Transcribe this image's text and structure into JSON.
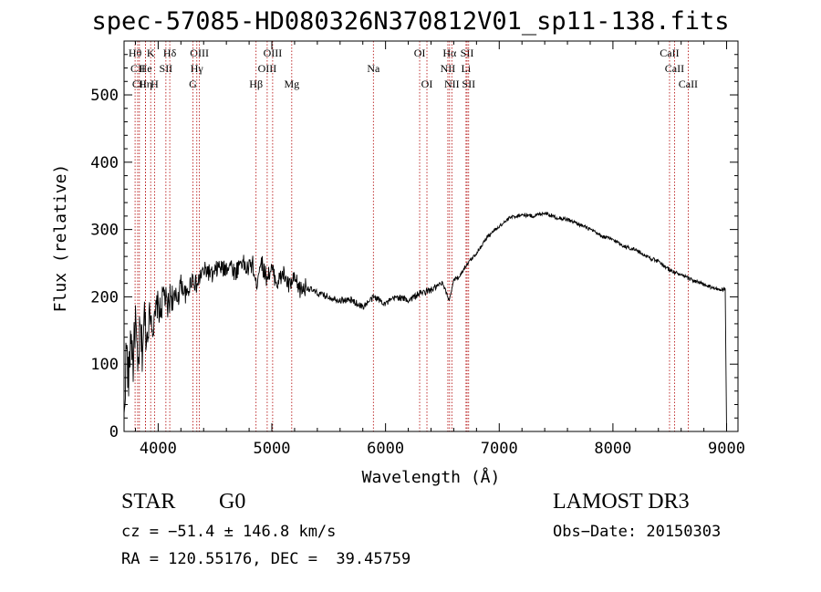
{
  "chart_data": {
    "type": "line",
    "title": "spec-57085-HD080326N370812V01_sp11-138.fits",
    "xlabel": "Wavelength (Å)",
    "ylabel": "Flux (relative)",
    "xlim": [
      3700,
      9100
    ],
    "ylim": [
      0,
      580
    ],
    "xticks": [
      4000,
      5000,
      6000,
      7000,
      8000,
      9000
    ],
    "yticks": [
      0,
      100,
      200,
      300,
      400,
      500
    ],
    "series": [
      {
        "name": "flux",
        "x": [
          3700,
          3720,
          3740,
          3760,
          3780,
          3800,
          3820,
          3840,
          3860,
          3880,
          3900,
          3930,
          3960,
          3990,
          4020,
          4050,
          4080,
          4110,
          4150,
          4200,
          4250,
          4300,
          4340,
          4380,
          4430,
          4480,
          4530,
          4580,
          4630,
          4680,
          4730,
          4780,
          4830,
          4860,
          4900,
          4950,
          5000,
          5050,
          5100,
          5150,
          5200,
          5250,
          5300,
          5400,
          5500,
          5600,
          5700,
          5800,
          5900,
          6000,
          6100,
          6200,
          6300,
          6400,
          6500,
          6560,
          6600,
          6650,
          6700,
          6800,
          6900,
          7000,
          7100,
          7200,
          7300,
          7400,
          7500,
          7600,
          7700,
          7800,
          7900,
          8000,
          8100,
          8200,
          8300,
          8400,
          8500,
          8600,
          8700,
          8800,
          8900,
          8990,
          9000
        ],
        "y": [
          10,
          130,
          70,
          150,
          100,
          170,
          80,
          150,
          120,
          170,
          140,
          180,
          150,
          190,
          175,
          210,
          180,
          205,
          190,
          220,
          200,
          230,
          215,
          235,
          240,
          230,
          245,
          240,
          250,
          235,
          255,
          240,
          250,
          215,
          255,
          230,
          240,
          220,
          235,
          215,
          225,
          210,
          215,
          205,
          200,
          195,
          195,
          185,
          200,
          190,
          200,
          195,
          205,
          210,
          220,
          195,
          225,
          230,
          245,
          265,
          290,
          305,
          318,
          322,
          320,
          325,
          318,
          315,
          308,
          300,
          290,
          285,
          275,
          270,
          260,
          252,
          240,
          232,
          225,
          218,
          212,
          210,
          0
        ]
      }
    ],
    "lines": [
      {
        "label": "Hθ",
        "wl": 3797,
        "row": 0
      },
      {
        "label": "CII",
        "wl": 3820,
        "row": 1
      },
      {
        "label": "CII",
        "wl": 3835,
        "row": 2
      },
      {
        "label": "K",
        "wl": 3934,
        "row": 0
      },
      {
        "label": "He",
        "wl": 3889,
        "row": 1
      },
      {
        "label": "Hη",
        "wl": 3889,
        "row": 2
      },
      {
        "label": "Hδ",
        "wl": 4102,
        "row": 0
      },
      {
        "label": "SII",
        "wl": 4068,
        "row": 1
      },
      {
        "label": "H",
        "wl": 3968,
        "row": 2
      },
      {
        "label": "OIII",
        "wl": 4363,
        "row": 0
      },
      {
        "label": "Hγ",
        "wl": 4340,
        "row": 1
      },
      {
        "label": "G",
        "wl": 4305,
        "row": 2
      },
      {
        "label": "OIII",
        "wl": 5007,
        "row": 0
      },
      {
        "label": "OIII",
        "wl": 4959,
        "row": 1
      },
      {
        "label": "Hβ",
        "wl": 4861,
        "row": 2
      },
      {
        "label": "Mg",
        "wl": 5175,
        "row": 2
      },
      {
        "label": "Na",
        "wl": 5893,
        "row": 1
      },
      {
        "label": "OI",
        "wl": 6300,
        "row": 0
      },
      {
        "label": "OI",
        "wl": 6364,
        "row": 2
      },
      {
        "label": "Hα",
        "wl": 6563,
        "row": 0
      },
      {
        "label": "NII",
        "wl": 6548,
        "row": 1
      },
      {
        "label": "NII",
        "wl": 6583,
        "row": 2
      },
      {
        "label": "SII",
        "wl": 6717,
        "row": 0
      },
      {
        "label": "Li",
        "wl": 6708,
        "row": 1
      },
      {
        "label": "SII",
        "wl": 6731,
        "row": 2
      },
      {
        "label": "CaII",
        "wl": 8498,
        "row": 0
      },
      {
        "label": "CaII",
        "wl": 8542,
        "row": 1
      },
      {
        "label": "CaII",
        "wl": 8662,
        "row": 2
      }
    ]
  },
  "info": {
    "obj_class": "STAR",
    "obj_subclass": "G0",
    "survey": "LAMOST DR3",
    "cz": "cz = −51.4 ± 146.8 km/s",
    "obs_date": "Obs−Date: 20150303",
    "radec": "RA = 120.55176, DEC =  39.45759"
  },
  "colors": {
    "line_marker": "#b00000",
    "spectrum": "#000000"
  }
}
